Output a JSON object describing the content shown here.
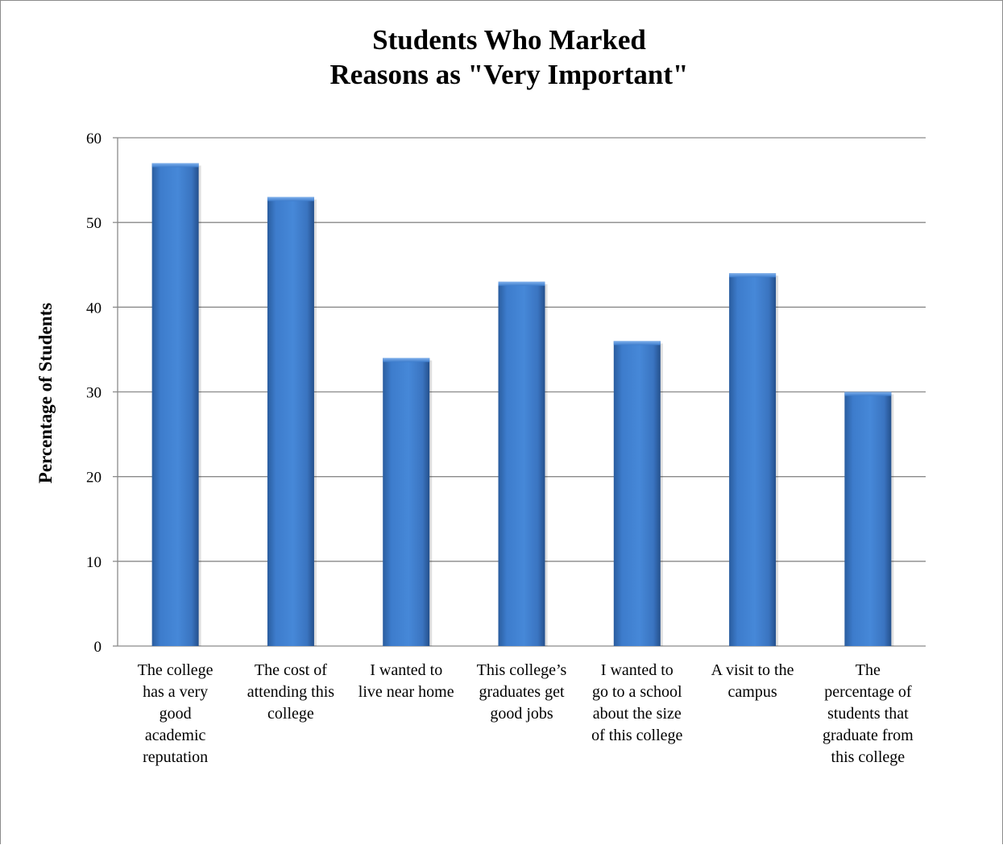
{
  "chart_data": {
    "type": "bar",
    "title": [
      "Students Who Marked",
      "Reasons as \"Very Important\""
    ],
    "xlabel": "",
    "ylabel": "Percentage of Students",
    "ylim": [
      0,
      60
    ],
    "yticks": [
      0,
      10,
      20,
      30,
      40,
      50,
      60
    ],
    "grid": true,
    "legend": "none",
    "bar_color": "#3b78c7",
    "categories": [
      [
        "The college",
        "has a very",
        "good",
        "academic",
        "reputation"
      ],
      [
        "The cost of",
        "attending this",
        "college"
      ],
      [
        "I wanted to",
        "live near home"
      ],
      [
        "This college’s",
        "graduates get",
        "good jobs"
      ],
      [
        "I wanted to",
        "go to a school",
        "about the size",
        "of this college"
      ],
      [
        "A visit to the",
        "campus"
      ],
      [
        "The",
        "percentage of",
        "students that",
        "graduate from",
        "this college"
      ]
    ],
    "values": [
      57,
      53,
      34,
      43,
      36,
      44,
      30
    ]
  }
}
